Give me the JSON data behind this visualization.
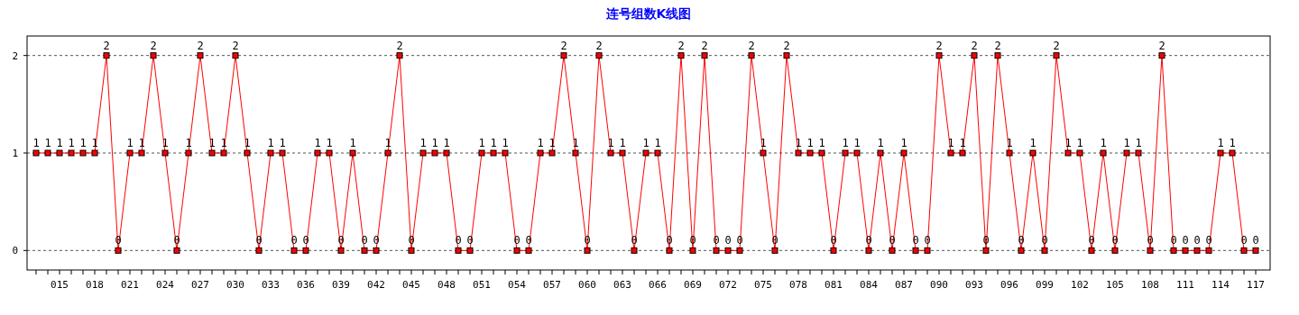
{
  "chart_data": {
    "type": "line",
    "title": "连号组数K线图",
    "categories": [
      null,
      null,
      "015",
      null,
      null,
      "018",
      null,
      null,
      "021",
      null,
      null,
      "024",
      null,
      null,
      "027",
      null,
      null,
      "030",
      null,
      null,
      "033",
      null,
      null,
      "036",
      null,
      null,
      "039",
      null,
      null,
      "042",
      null,
      null,
      "045",
      null,
      null,
      "048",
      null,
      null,
      "051",
      null,
      null,
      "054",
      null,
      null,
      "057",
      null,
      null,
      "060",
      null,
      null,
      "063",
      null,
      null,
      "066",
      null,
      null,
      "069",
      null,
      null,
      "072",
      null,
      null,
      "075",
      null,
      null,
      "078",
      null,
      null,
      "081",
      null,
      null,
      "084",
      null,
      null,
      "087",
      null,
      null,
      "090",
      null,
      null,
      "093",
      null,
      null,
      "096",
      null,
      null,
      "099",
      null,
      null,
      "102",
      null,
      null,
      "105",
      null,
      null,
      "108",
      null,
      null,
      "111",
      null,
      null,
      "114",
      null,
      null,
      "117"
    ],
    "values": [
      1,
      1,
      1,
      1,
      1,
      1,
      2,
      0,
      1,
      1,
      2,
      1,
      0,
      1,
      2,
      1,
      1,
      2,
      1,
      0,
      1,
      1,
      0,
      0,
      1,
      1,
      0,
      1,
      0,
      0,
      1,
      2,
      0,
      1,
      1,
      1,
      0,
      0,
      1,
      1,
      1,
      0,
      0,
      1,
      1,
      2,
      1,
      0,
      2,
      1,
      1,
      0,
      1,
      1,
      0,
      2,
      0,
      2,
      0,
      0,
      0,
      2,
      1,
      0,
      2,
      1,
      1,
      1,
      0,
      1,
      1,
      0,
      1,
      0,
      1,
      0,
      0,
      2,
      1,
      1,
      2,
      0,
      2,
      1,
      0,
      1,
      0,
      2,
      1,
      1,
      0,
      1,
      0,
      1,
      1,
      0,
      2,
      0,
      0,
      0,
      0,
      1,
      1,
      0,
      0
    ],
    "color": "#ff0000",
    "ylim": [
      -0.2,
      2.2
    ],
    "yticks": [
      0,
      1,
      2
    ],
    "grid": "y",
    "data_labels": true,
    "marker": "square"
  }
}
